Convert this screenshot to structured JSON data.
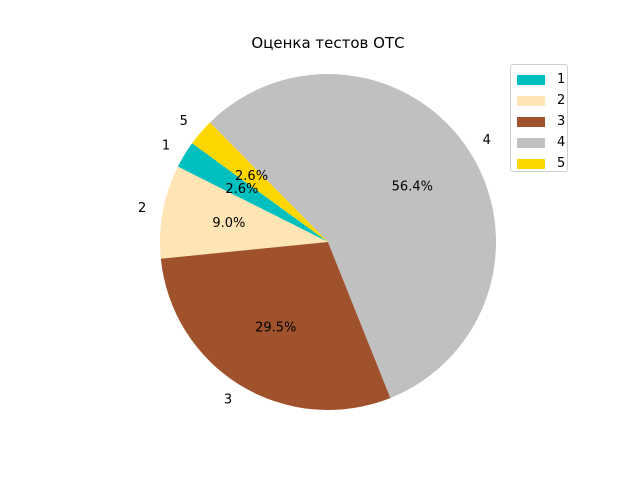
{
  "chart_data": {
    "type": "pie",
    "title": "Оценка тестов ОТС",
    "categories": [
      "1",
      "2",
      "3",
      "4",
      "5"
    ],
    "values": [
      2.6,
      9.0,
      29.5,
      56.4,
      2.6
    ],
    "percent_labels": [
      "2.6%",
      "9.0%",
      "29.5%",
      "56.4%",
      "2.6%"
    ],
    "colors": [
      "#00bfbf",
      "#ffe4b5",
      "#a0522d",
      "#c0c0c0",
      "#ffd700"
    ],
    "legend_placement": "top-right",
    "start_angle_deg": 144,
    "direction": "counterclockwise"
  }
}
